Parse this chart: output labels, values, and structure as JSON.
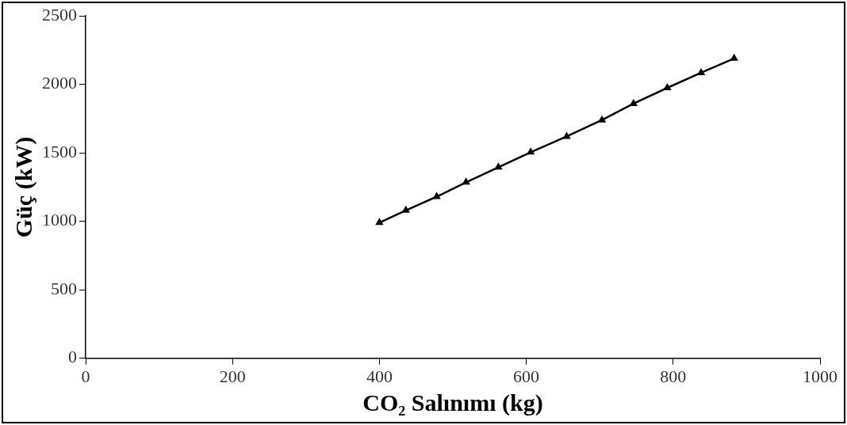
{
  "chart_data": {
    "type": "line",
    "xlabel": "CO₂ Salınımı (kg)",
    "ylabel": "Güç (kW)",
    "x": [
      400,
      436,
      478,
      518,
      562,
      606,
      655,
      703,
      746,
      792,
      838,
      883
    ],
    "series": [
      {
        "color": "#000000",
        "values": [
          990,
          1080,
          1180,
          1285,
          1395,
          1505,
          1620,
          1740,
          1860,
          1975,
          2085,
          2190
        ]
      }
    ],
    "xlim": [
      0,
      1000
    ],
    "xticks": [
      0,
      200,
      400,
      600,
      800,
      1000
    ],
    "ylim": [
      0,
      2500
    ],
    "yticks": [
      0,
      500,
      1000,
      1500,
      2000,
      2500
    ],
    "grid": false,
    "legend": false,
    "marker": "triangle",
    "line_style": "solid"
  }
}
